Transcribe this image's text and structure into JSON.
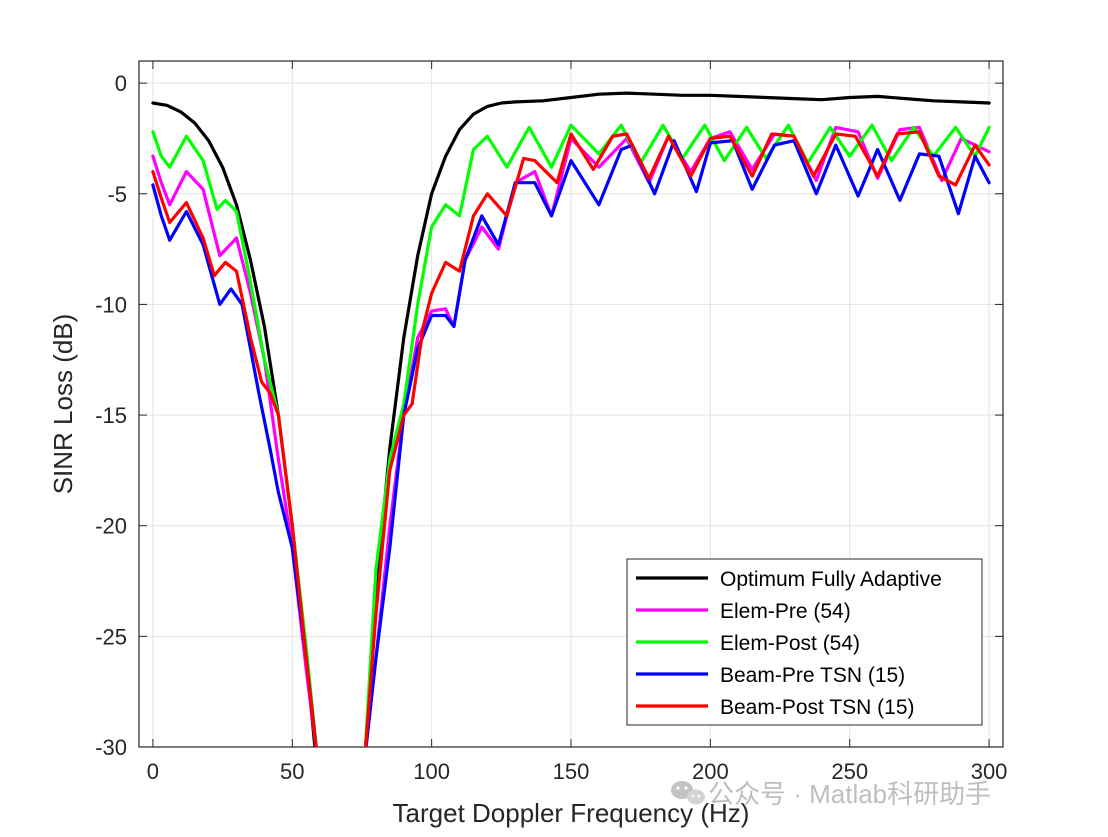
{
  "chart_data": {
    "type": "line",
    "title": "",
    "xlabel": "Target Doppler Frequency (Hz)",
    "ylabel": "SINR Loss (dB)",
    "xlim": [
      -5,
      305
    ],
    "ylim": [
      -30,
      1
    ],
    "xticks": [
      0,
      50,
      100,
      150,
      200,
      250,
      300
    ],
    "yticks": [
      0,
      -5,
      -10,
      -15,
      -20,
      -25,
      -30
    ],
    "xtick_labels": [
      "0",
      "50",
      "100",
      "150",
      "200",
      "250",
      "300"
    ],
    "ytick_labels": [
      "0",
      "-5",
      "-10",
      "-15",
      "-20",
      "-25",
      "-30"
    ],
    "grid": true,
    "legend_position": "bottom-right",
    "series": [
      {
        "name": "Optimum Fully Adaptive",
        "color": "#000000",
        "x": [
          0,
          5,
          10,
          15,
          20,
          25,
          30,
          35,
          40,
          45,
          50,
          55,
          58.5,
          76,
          80,
          85,
          90,
          95,
          100,
          105,
          110,
          115,
          120,
          125,
          130,
          140,
          150,
          160,
          170,
          180,
          190,
          200,
          210,
          220,
          230,
          240,
          250,
          260,
          270,
          280,
          290,
          300
        ],
        "y": [
          -0.9,
          -1.0,
          -1.3,
          -1.8,
          -2.6,
          -3.8,
          -5.5,
          -8.0,
          -11.0,
          -15.0,
          -20.0,
          -26.0,
          -30.5,
          -30.5,
          -23.0,
          -16.5,
          -11.5,
          -7.8,
          -5.0,
          -3.3,
          -2.1,
          -1.4,
          -1.05,
          -0.9,
          -0.85,
          -0.8,
          -0.65,
          -0.5,
          -0.45,
          -0.5,
          -0.55,
          -0.55,
          -0.6,
          -0.65,
          -0.7,
          -0.75,
          -0.65,
          -0.6,
          -0.7,
          -0.8,
          -0.85,
          -0.9
        ]
      },
      {
        "name": "Elem-Pre (54)",
        "color": "#ff00ff",
        "x": [
          0,
          3,
          6,
          12,
          18,
          24,
          30,
          35,
          40,
          45,
          50,
          55,
          59,
          76,
          80,
          85,
          90,
          95,
          100,
          105,
          108,
          112,
          118,
          124,
          130,
          137,
          143,
          150,
          160,
          170,
          178,
          185,
          193,
          200,
          207,
          215,
          223,
          230,
          238,
          245,
          253,
          260,
          268,
          275,
          283,
          290,
          300
        ],
        "y": [
          -3.3,
          -4.5,
          -5.5,
          -4.0,
          -4.8,
          -7.8,
          -7.0,
          -9.5,
          -12.5,
          -17.0,
          -21.0,
          -26.5,
          -30.5,
          -30.5,
          -26.0,
          -20.0,
          -15.0,
          -11.5,
          -10.3,
          -10.2,
          -11.0,
          -8.0,
          -6.5,
          -7.5,
          -4.5,
          -4.0,
          -6.0,
          -2.5,
          -3.8,
          -2.5,
          -4.5,
          -2.4,
          -4.0,
          -2.5,
          -2.2,
          -3.9,
          -2.3,
          -2.4,
          -4.4,
          -2.0,
          -2.2,
          -4.3,
          -2.1,
          -2.0,
          -4.4,
          -2.5,
          -3.1
        ]
      },
      {
        "name": "Elem-Post (54)",
        "color": "#00ff00",
        "x": [
          0,
          3,
          6,
          12,
          18,
          23,
          26,
          30,
          35,
          40,
          45,
          50,
          55,
          59,
          76,
          80,
          85,
          90,
          95,
          100,
          105,
          110,
          115,
          120,
          127,
          135,
          143,
          150,
          160,
          168,
          175,
          183,
          190,
          198,
          205,
          213,
          220,
          228,
          235,
          243,
          250,
          258,
          265,
          273,
          280,
          288,
          295,
          300
        ],
        "y": [
          -2.2,
          -3.3,
          -3.8,
          -2.4,
          -3.5,
          -5.7,
          -5.3,
          -5.8,
          -9.0,
          -12.5,
          -15.0,
          -20.0,
          -25.5,
          -30.5,
          -30.5,
          -22.0,
          -17.0,
          -14.5,
          -10.0,
          -6.5,
          -5.5,
          -6.0,
          -3.0,
          -2.4,
          -3.8,
          -2.0,
          -3.8,
          -1.9,
          -3.2,
          -1.9,
          -3.6,
          -1.9,
          -3.4,
          -1.9,
          -3.5,
          -2.0,
          -3.4,
          -1.9,
          -3.6,
          -2.0,
          -3.3,
          -1.9,
          -3.5,
          -2.0,
          -3.3,
          -2.0,
          -3.3,
          -2.0
        ]
      },
      {
        "name": "Beam-Pre TSN (15)",
        "color": "#0000ff",
        "x": [
          0,
          3,
          6,
          12,
          18,
          24,
          28,
          32,
          38,
          42,
          45,
          50,
          55,
          59,
          76,
          80,
          85,
          90,
          95,
          100,
          105,
          108,
          112,
          118,
          124,
          130,
          137,
          143,
          150,
          160,
          168,
          172,
          180,
          187,
          195,
          200,
          208,
          215,
          223,
          230,
          238,
          245,
          253,
          260,
          268,
          275,
          282,
          289,
          295,
          300
        ],
        "y": [
          -4.6,
          -6.0,
          -7.1,
          -5.8,
          -7.3,
          -10.0,
          -9.3,
          -10.0,
          -14.0,
          -16.5,
          -18.5,
          -21.0,
          -26.0,
          -30.5,
          -30.5,
          -26.0,
          -21.0,
          -15.0,
          -12.0,
          -10.5,
          -10.5,
          -11.0,
          -8.0,
          -6.0,
          -7.3,
          -4.5,
          -4.5,
          -6.0,
          -3.5,
          -5.5,
          -3.0,
          -2.8,
          -5.0,
          -2.6,
          -4.9,
          -2.7,
          -2.6,
          -4.8,
          -2.8,
          -2.6,
          -5.0,
          -2.8,
          -5.1,
          -3.0,
          -5.3,
          -3.2,
          -3.3,
          -5.9,
          -3.3,
          -4.5
        ]
      },
      {
        "name": "Beam-Post TSN (15)",
        "color": "#ff0000",
        "x": [
          0,
          3,
          6,
          12,
          18,
          22,
          26,
          30,
          35,
          39,
          42,
          45,
          50,
          55,
          59,
          76,
          80,
          85,
          90,
          93,
          97,
          100,
          105,
          110,
          115,
          120,
          127,
          133,
          137,
          145,
          150,
          158,
          165,
          170,
          178,
          185,
          193,
          200,
          207,
          215,
          222,
          230,
          237,
          245,
          252,
          260,
          267,
          275,
          282,
          288,
          295,
          300
        ],
        "y": [
          -4.0,
          -5.2,
          -6.3,
          -5.4,
          -7.0,
          -8.7,
          -8.1,
          -8.5,
          -11.5,
          -13.5,
          -14.0,
          -15.0,
          -20.0,
          -26.0,
          -30.5,
          -30.5,
          -24.0,
          -17.5,
          -15.0,
          -14.5,
          -11.0,
          -9.5,
          -8.1,
          -8.5,
          -6.0,
          -5.0,
          -6.0,
          -3.4,
          -3.5,
          -4.5,
          -2.3,
          -3.9,
          -2.4,
          -2.3,
          -4.3,
          -2.4,
          -4.2,
          -2.5,
          -2.4,
          -4.2,
          -2.3,
          -2.4,
          -4.2,
          -2.3,
          -2.4,
          -4.2,
          -2.3,
          -2.2,
          -4.2,
          -4.6,
          -2.8,
          -3.7
        ]
      }
    ]
  },
  "watermark": {
    "text": "公众号 · Matlab科研助手",
    "icon": "wechat-icon"
  }
}
